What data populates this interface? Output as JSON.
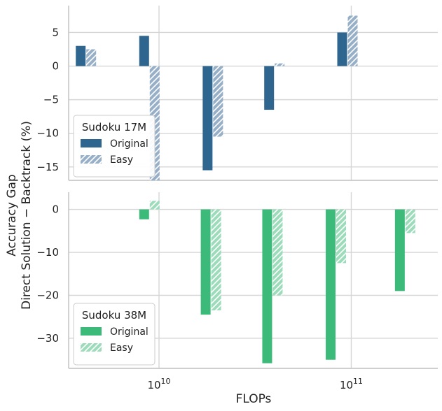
{
  "chart_data": [
    {
      "type": "bar",
      "panel": "top",
      "ylim": [
        -17,
        9
      ],
      "yticks": [
        5,
        0,
        -5,
        -10,
        -15
      ],
      "yticklabels": [
        "5",
        "0",
        "−5",
        "−10",
        "−15"
      ],
      "legend": {
        "title": "Sudoku 17M",
        "entries": [
          "Original",
          "Easy"
        ],
        "position": "lower-left"
      },
      "colors": {
        "original": "#2f6690",
        "easy": "#97b0c8"
      },
      "series": [
        {
          "name": "Original",
          "values": [
            3.0,
            4.5,
            -15.5,
            -6.5,
            5.0
          ]
        },
        {
          "name": "Easy",
          "values": [
            2.5,
            -17.0,
            -10.5,
            0.4,
            7.5
          ]
        }
      ]
    },
    {
      "type": "bar",
      "panel": "bottom",
      "ylim": [
        -37,
        4
      ],
      "yticks": [
        0,
        -10,
        -20,
        -30
      ],
      "yticklabels": [
        "0",
        "−10",
        "−20",
        "−30"
      ],
      "legend": {
        "title": "Sudoku 38M",
        "entries": [
          "Original",
          "Easy"
        ],
        "position": "lower-left"
      },
      "colors": {
        "original": "#3cba7a",
        "easy": "#9ddcbb"
      },
      "series": [
        {
          "name": "Original",
          "values": [
            -2.3,
            -24.5,
            -35.8,
            -35.0,
            -19.0
          ]
        },
        {
          "name": "Easy",
          "values": [
            2.0,
            -23.5,
            -20.0,
            -12.5,
            -5.5
          ]
        }
      ]
    }
  ],
  "x_axis": {
    "label": "FLOPs",
    "scale": "log",
    "xlim_log10": [
      9.53,
      11.45
    ],
    "tick_exponents": [
      10,
      11
    ],
    "tick_base": "10",
    "tick_exp_labels": [
      "10",
      "11"
    ],
    "group_positions_log10": [
      [
        9.62,
        9.95,
        10.28,
        10.6,
        10.98
      ],
      [
        9.95,
        10.27,
        10.59,
        10.92,
        11.28
      ]
    ]
  },
  "y_axis": {
    "label_line1": "Accuracy Gap",
    "label_line2": "Direct Solution − Backtrack (%)"
  }
}
